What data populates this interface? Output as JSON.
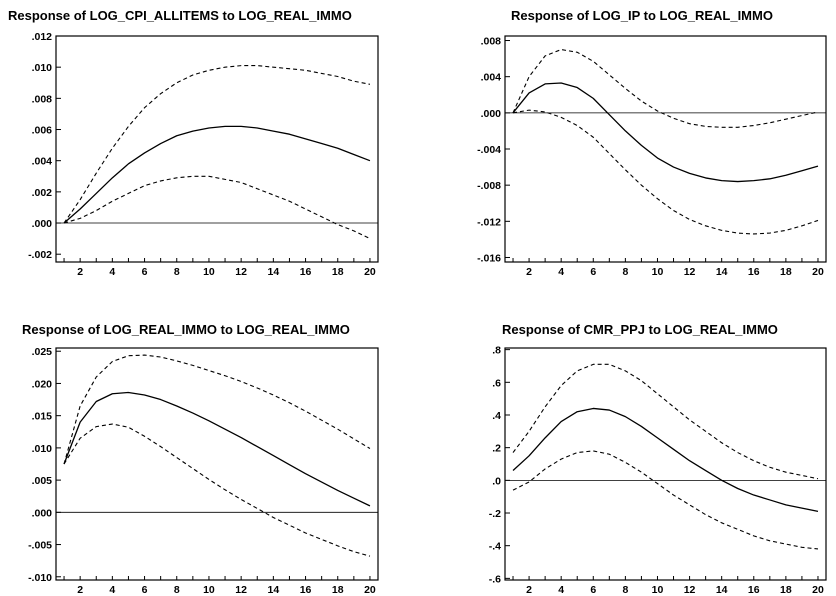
{
  "chart_data": [
    {
      "type": "line",
      "title": "Response of LOG_CPI_ALLITEMS to LOG_REAL_IMMO",
      "xlabel": "",
      "ylabel": "",
      "x": [
        1,
        2,
        3,
        4,
        5,
        6,
        7,
        8,
        9,
        10,
        11,
        12,
        13,
        14,
        15,
        16,
        17,
        18,
        19,
        20
      ],
      "xticks": [
        "2",
        "4",
        "6",
        "8",
        "10",
        "12",
        "14",
        "16",
        "18",
        "20"
      ],
      "ylim": [
        -0.0025,
        0.012
      ],
      "yticks": [
        ".012",
        ".010",
        ".008",
        ".006",
        ".004",
        ".002",
        ".000",
        "-.002"
      ],
      "ytick_values": [
        0.012,
        0.01,
        0.008,
        0.006,
        0.004,
        0.002,
        0.0,
        -0.002
      ],
      "zero_line": true,
      "series": [
        {
          "style": "solid",
          "values": [
            0.0,
            0.0009,
            0.0019,
            0.0029,
            0.0038,
            0.0045,
            0.0051,
            0.0056,
            0.0059,
            0.0061,
            0.0062,
            0.0062,
            0.0061,
            0.0059,
            0.0057,
            0.0054,
            0.0051,
            0.0048,
            0.0044,
            0.004
          ]
        },
        {
          "style": "dashed",
          "values": [
            0.0,
            0.0015,
            0.0032,
            0.0048,
            0.0062,
            0.0074,
            0.0083,
            0.009,
            0.0095,
            0.0098,
            0.01,
            0.0101,
            0.0101,
            0.01,
            0.0099,
            0.0098,
            0.0096,
            0.0094,
            0.0091,
            0.0089
          ]
        },
        {
          "style": "dashed",
          "values": [
            0.0,
            0.0003,
            0.0008,
            0.0014,
            0.0019,
            0.0024,
            0.0027,
            0.0029,
            0.003,
            0.003,
            0.0028,
            0.0026,
            0.0022,
            0.0018,
            0.0014,
            0.0009,
            0.0004,
            -0.0001,
            -0.0005,
            -0.001
          ]
        }
      ]
    },
    {
      "type": "line",
      "title": "Response of LOG_IP to LOG_REAL_IMMO",
      "xlabel": "",
      "ylabel": "",
      "x": [
        1,
        2,
        3,
        4,
        5,
        6,
        7,
        8,
        9,
        10,
        11,
        12,
        13,
        14,
        15,
        16,
        17,
        18,
        19,
        20
      ],
      "xticks": [
        "2",
        "4",
        "6",
        "8",
        "10",
        "12",
        "14",
        "16",
        "18",
        "20"
      ],
      "ylim": [
        -0.0165,
        0.0085
      ],
      "yticks": [
        ".008",
        ".004",
        ".000",
        "-.004",
        "-.008",
        "-.012",
        "-.016"
      ],
      "ytick_values": [
        0.008,
        0.004,
        0.0,
        -0.004,
        -0.008,
        -0.012,
        -0.016
      ],
      "zero_line": true,
      "series": [
        {
          "style": "solid",
          "values": [
            0.0,
            0.0022,
            0.0032,
            0.0033,
            0.0028,
            0.0016,
            -0.0002,
            -0.002,
            -0.0036,
            -0.005,
            -0.006,
            -0.0067,
            -0.0072,
            -0.0075,
            -0.0076,
            -0.0075,
            -0.0073,
            -0.0069,
            -0.0064,
            -0.0059
          ]
        },
        {
          "style": "dashed",
          "values": [
            0.0,
            0.004,
            0.0063,
            0.007,
            0.0067,
            0.0057,
            0.0042,
            0.0027,
            0.0013,
            0.0002,
            -0.0006,
            -0.0012,
            -0.0015,
            -0.0016,
            -0.0016,
            -0.0014,
            -0.0011,
            -0.0007,
            -0.0003,
            0.0001
          ]
        },
        {
          "style": "dashed",
          "values": [
            0.0,
            0.0003,
            0.0001,
            -0.0005,
            -0.0014,
            -0.0027,
            -0.0045,
            -0.0063,
            -0.008,
            -0.0095,
            -0.0108,
            -0.0118,
            -0.0125,
            -0.013,
            -0.0133,
            -0.0134,
            -0.0133,
            -0.013,
            -0.0125,
            -0.0119
          ]
        }
      ]
    },
    {
      "type": "line",
      "title": "Response of LOG_REAL_IMMO to LOG_REAL_IMMO",
      "xlabel": "",
      "ylabel": "",
      "x": [
        1,
        2,
        3,
        4,
        5,
        6,
        7,
        8,
        9,
        10,
        11,
        12,
        13,
        14,
        15,
        16,
        17,
        18,
        19,
        20
      ],
      "xticks": [
        "2",
        "4",
        "6",
        "8",
        "10",
        "12",
        "14",
        "16",
        "18",
        "20"
      ],
      "ylim": [
        -0.0105,
        0.0255
      ],
      "yticks": [
        ".025",
        ".020",
        ".015",
        ".010",
        ".005",
        ".000",
        "-.005",
        "-.010"
      ],
      "ytick_values": [
        0.025,
        0.02,
        0.015,
        0.01,
        0.005,
        0.0,
        -0.005,
        -0.01
      ],
      "zero_line": true,
      "series": [
        {
          "style": "solid",
          "values": [
            0.0075,
            0.014,
            0.0172,
            0.0184,
            0.0186,
            0.0182,
            0.0175,
            0.0165,
            0.0154,
            0.0142,
            0.0129,
            0.0116,
            0.0102,
            0.0088,
            0.0074,
            0.006,
            0.0047,
            0.0034,
            0.0022,
            0.001
          ]
        },
        {
          "style": "dashed",
          "values": [
            0.0075,
            0.0165,
            0.021,
            0.0234,
            0.0243,
            0.0244,
            0.0241,
            0.0235,
            0.0228,
            0.022,
            0.0212,
            0.0203,
            0.0193,
            0.0182,
            0.017,
            0.0157,
            0.0143,
            0.0129,
            0.0114,
            0.0099
          ]
        },
        {
          "style": "dashed",
          "values": [
            0.0075,
            0.0115,
            0.0133,
            0.0137,
            0.0132,
            0.0118,
            0.0102,
            0.0085,
            0.0068,
            0.0051,
            0.0035,
            0.002,
            0.0006,
            -0.0008,
            -0.002,
            -0.0032,
            -0.0042,
            -0.0052,
            -0.0061,
            -0.0068
          ]
        }
      ]
    },
    {
      "type": "line",
      "title": "Response of CMR_PPJ to LOG_REAL_IMMO",
      "xlabel": "",
      "ylabel": "",
      "x": [
        1,
        2,
        3,
        4,
        5,
        6,
        7,
        8,
        9,
        10,
        11,
        12,
        13,
        14,
        15,
        16,
        17,
        18,
        19,
        20
      ],
      "xticks": [
        "2",
        "4",
        "6",
        "8",
        "10",
        "12",
        "14",
        "16",
        "18",
        "20"
      ],
      "ylim": [
        -0.61,
        0.81
      ],
      "yticks": [
        ".8",
        ".6",
        ".4",
        ".2",
        ".0",
        "-.2",
        "-.4",
        "-.6"
      ],
      "ytick_values": [
        0.8,
        0.6,
        0.4,
        0.2,
        0.0,
        -0.2,
        -0.4,
        -0.6
      ],
      "zero_line": true,
      "series": [
        {
          "style": "solid",
          "values": [
            0.06,
            0.15,
            0.26,
            0.36,
            0.42,
            0.44,
            0.43,
            0.39,
            0.33,
            0.26,
            0.19,
            0.12,
            0.06,
            0.0,
            -0.05,
            -0.09,
            -0.12,
            -0.15,
            -0.17,
            -0.19
          ]
        },
        {
          "style": "dashed",
          "values": [
            0.17,
            0.3,
            0.45,
            0.58,
            0.67,
            0.71,
            0.71,
            0.67,
            0.61,
            0.53,
            0.45,
            0.37,
            0.3,
            0.23,
            0.17,
            0.12,
            0.08,
            0.05,
            0.03,
            0.01
          ]
        },
        {
          "style": "dashed",
          "values": [
            -0.06,
            -0.01,
            0.07,
            0.13,
            0.17,
            0.18,
            0.16,
            0.11,
            0.05,
            -0.02,
            -0.09,
            -0.15,
            -0.21,
            -0.26,
            -0.3,
            -0.34,
            -0.37,
            -0.39,
            -0.41,
            -0.42
          ]
        }
      ]
    }
  ]
}
